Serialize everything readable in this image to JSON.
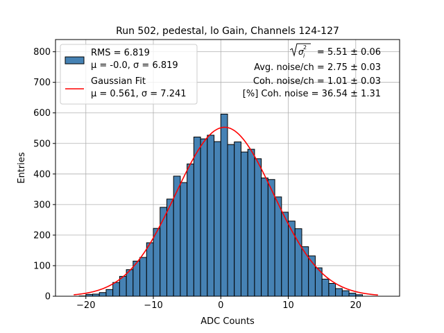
{
  "chart_data": {
    "type": "histogram",
    "title": "Run 502, pedestal, lo Gain, Channels 124-127",
    "xlabel": "ADC Counts",
    "ylabel": "Entries",
    "xlim": [
      -24.5,
      26.5
    ],
    "ylim": [
      0,
      840
    ],
    "xticks": [
      -20,
      -10,
      0,
      10,
      20
    ],
    "xtick_labels": [
      "−20",
      "−10",
      "0",
      "10",
      "20"
    ],
    "yticks": [
      0,
      100,
      200,
      300,
      400,
      500,
      600,
      700,
      800
    ],
    "ytick_labels": [
      "0",
      "100",
      "200",
      "300",
      "400",
      "500",
      "600",
      "700",
      "800"
    ],
    "grid": true,
    "bin_width": 1,
    "bin_start": -21,
    "bin_counts": [
      1,
      6,
      7,
      12,
      22,
      45,
      65,
      87,
      115,
      127,
      175,
      222,
      291,
      318,
      393,
      372,
      433,
      521,
      515,
      527,
      506,
      596,
      496,
      505,
      472,
      481,
      450,
      387,
      382,
      325,
      275,
      246,
      221,
      162,
      132,
      93,
      56,
      42,
      25,
      18,
      10,
      5
    ],
    "bar_color": "#4682b4",
    "fit": {
      "name": "Gaussian Fit",
      "mu": 0.561,
      "sigma": 7.241,
      "amplitude": 553,
      "x_range": [
        -21.8,
        23.3
      ],
      "color": "#ff0000"
    },
    "legend": {
      "position": "top-left",
      "entries": [
        {
          "kind": "patch",
          "line1": "RMS = 6.819",
          "line2": "μ = -0.0, σ = 6.819"
        },
        {
          "kind": "line",
          "line1": "Gaussian Fit",
          "line2": "μ = 0.561, σ = 7.241"
        }
      ]
    },
    "annotations": {
      "sqrt_value": "= 5.51 ± 0.06",
      "avg_noise": "Avg. noise/ch = 2.75 ± 0.03",
      "coh_noise": "Coh. noise/ch = 1.01 ± 0.03",
      "pct_coh_noise": "[%] Coh. noise = 36.54 ± 1.31"
    }
  }
}
